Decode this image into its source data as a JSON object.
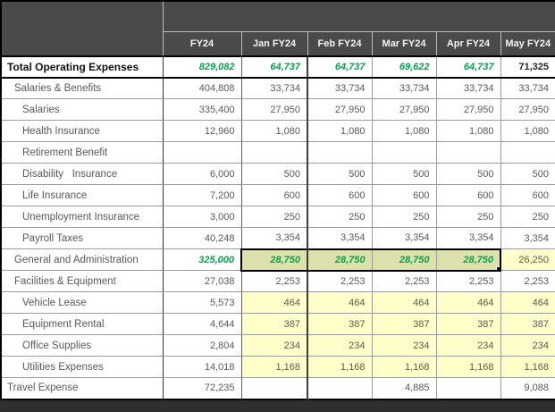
{
  "colors": {
    "header_bg": "#4a4a4a",
    "green": "#00a551",
    "yellow": "#ffffc9",
    "selected_yellow": "#dde2ac",
    "text_gray": "#595959",
    "screen_bg": "#2f2f2f"
  },
  "table": {
    "columns": [
      "FY24",
      "Jan FY24",
      "Feb FY24",
      "Mar FY24",
      "Apr FY24",
      "May FY24"
    ],
    "rows": [
      {
        "label": "Total Operating Expenses",
        "indent": 0,
        "row_class": "total",
        "cells": [
          {
            "v": "829,082",
            "c": "green"
          },
          {
            "v": "64,737",
            "c": "green"
          },
          {
            "v": "64,737",
            "c": "green"
          },
          {
            "v": "69,622",
            "c": "green"
          },
          {
            "v": "64,737",
            "c": "green"
          },
          {
            "v": "71,325",
            "c": "bold-dark"
          }
        ]
      },
      {
        "label": "Salaries & Benefits",
        "indent": 1,
        "row_class": "",
        "cells": [
          {
            "v": "404,808",
            "c": ""
          },
          {
            "v": "33,734",
            "c": ""
          },
          {
            "v": "33,734",
            "c": ""
          },
          {
            "v": "33,734",
            "c": ""
          },
          {
            "v": "33,734",
            "c": ""
          },
          {
            "v": "33,734",
            "c": ""
          }
        ]
      },
      {
        "label": "Salaries",
        "indent": 2,
        "row_class": "",
        "cells": [
          {
            "v": "335,400",
            "c": ""
          },
          {
            "v": "27,950",
            "c": ""
          },
          {
            "v": "27,950",
            "c": ""
          },
          {
            "v": "27,950",
            "c": ""
          },
          {
            "v": "27,950",
            "c": ""
          },
          {
            "v": "27,950",
            "c": ""
          }
        ]
      },
      {
        "label": "Health Insurance",
        "indent": 2,
        "row_class": "",
        "cells": [
          {
            "v": "12,960",
            "c": ""
          },
          {
            "v": "1,080",
            "c": ""
          },
          {
            "v": "1,080",
            "c": ""
          },
          {
            "v": "1,080",
            "c": ""
          },
          {
            "v": "1,080",
            "c": ""
          },
          {
            "v": "1,080",
            "c": ""
          }
        ]
      },
      {
        "label": "Retirement Benefit",
        "indent": 2,
        "row_class": "",
        "cells": [
          {
            "v": "",
            "c": ""
          },
          {
            "v": "",
            "c": ""
          },
          {
            "v": "",
            "c": ""
          },
          {
            "v": "",
            "c": ""
          },
          {
            "v": "",
            "c": ""
          },
          {
            "v": "",
            "c": ""
          }
        ]
      },
      {
        "label": "Disability   Insurance",
        "indent": 2,
        "row_class": "",
        "cells": [
          {
            "v": "6,000",
            "c": ""
          },
          {
            "v": "500",
            "c": ""
          },
          {
            "v": "500",
            "c": ""
          },
          {
            "v": "500",
            "c": ""
          },
          {
            "v": "500",
            "c": ""
          },
          {
            "v": "500",
            "c": ""
          }
        ]
      },
      {
        "label": "Life Insurance",
        "indent": 2,
        "row_class": "",
        "cells": [
          {
            "v": "7,200",
            "c": ""
          },
          {
            "v": "600",
            "c": ""
          },
          {
            "v": "600",
            "c": ""
          },
          {
            "v": "600",
            "c": ""
          },
          {
            "v": "600",
            "c": ""
          },
          {
            "v": "600",
            "c": ""
          }
        ]
      },
      {
        "label": "Unemployment Insurance",
        "indent": 2,
        "row_class": "",
        "cells": [
          {
            "v": "3,000",
            "c": ""
          },
          {
            "v": "250",
            "c": ""
          },
          {
            "v": "250",
            "c": ""
          },
          {
            "v": "250",
            "c": ""
          },
          {
            "v": "250",
            "c": ""
          },
          {
            "v": "250",
            "c": ""
          }
        ]
      },
      {
        "label": "Payroll Taxes",
        "indent": 2,
        "row_class": "",
        "cells": [
          {
            "v": "40,248",
            "c": ""
          },
          {
            "v": "3,354",
            "c": ""
          },
          {
            "v": "3,354",
            "c": ""
          },
          {
            "v": "3,354",
            "c": ""
          },
          {
            "v": "3,354",
            "c": ""
          },
          {
            "v": "3,354",
            "c": ""
          }
        ]
      },
      {
        "label": "General and Administration",
        "indent": 1,
        "row_class": "",
        "cells": [
          {
            "v": "325,000",
            "c": "green"
          },
          {
            "v": "28,750",
            "c": "green sel sel-first"
          },
          {
            "v": "28,750",
            "c": "green sel"
          },
          {
            "v": "28,750",
            "c": "green sel"
          },
          {
            "v": "28,750",
            "c": "green sel sel-last handle"
          },
          {
            "v": "26,250",
            "c": "yellow"
          }
        ]
      },
      {
        "label": "Facilities & Equipment",
        "indent": 1,
        "row_class": "",
        "cells": [
          {
            "v": "27,038",
            "c": ""
          },
          {
            "v": "2,253",
            "c": ""
          },
          {
            "v": "2,253",
            "c": ""
          },
          {
            "v": "2,253",
            "c": ""
          },
          {
            "v": "2,253",
            "c": ""
          },
          {
            "v": "2,253",
            "c": ""
          }
        ]
      },
      {
        "label": "Vehicle Lease",
        "indent": 2,
        "row_class": "",
        "cells": [
          {
            "v": "5,573",
            "c": ""
          },
          {
            "v": "464",
            "c": "yellow"
          },
          {
            "v": "464",
            "c": "yellow"
          },
          {
            "v": "464",
            "c": "yellow"
          },
          {
            "v": "464",
            "c": "yellow"
          },
          {
            "v": "464",
            "c": "yellow"
          }
        ]
      },
      {
        "label": "Equipment Rental",
        "indent": 2,
        "row_class": "",
        "cells": [
          {
            "v": "4,644",
            "c": ""
          },
          {
            "v": "387",
            "c": "yellow"
          },
          {
            "v": "387",
            "c": "yellow"
          },
          {
            "v": "387",
            "c": "yellow"
          },
          {
            "v": "387",
            "c": "yellow"
          },
          {
            "v": "387",
            "c": "yellow"
          }
        ]
      },
      {
        "label": "Office Supplies",
        "indent": 2,
        "row_class": "",
        "cells": [
          {
            "v": "2,804",
            "c": ""
          },
          {
            "v": "234",
            "c": "yellow"
          },
          {
            "v": "234",
            "c": "yellow"
          },
          {
            "v": "234",
            "c": "yellow"
          },
          {
            "v": "234",
            "c": "yellow"
          },
          {
            "v": "234",
            "c": "yellow"
          }
        ]
      },
      {
        "label": "Utilities Expenses",
        "indent": 2,
        "row_class": "",
        "cells": [
          {
            "v": "14,018",
            "c": ""
          },
          {
            "v": "1,168",
            "c": "yellow"
          },
          {
            "v": "1,168",
            "c": "yellow"
          },
          {
            "v": "1,168",
            "c": "yellow"
          },
          {
            "v": "1,168",
            "c": "yellow"
          },
          {
            "v": "1,168",
            "c": "yellow"
          }
        ]
      },
      {
        "label": "Travel Expense",
        "indent": 0,
        "row_class": "",
        "cells": [
          {
            "v": "72,235",
            "c": ""
          },
          {
            "v": "",
            "c": ""
          },
          {
            "v": "",
            "c": ""
          },
          {
            "v": "4,885",
            "c": ""
          },
          {
            "v": "",
            "c": ""
          },
          {
            "v": "9,088",
            "c": ""
          }
        ]
      }
    ]
  },
  "selection": {
    "row": "General and Administration",
    "columns": [
      "Jan FY24",
      "Feb FY24",
      "Mar FY24",
      "Apr FY24"
    ],
    "values": [
      "28,750",
      "28,750",
      "28,750",
      "28,750"
    ],
    "fill_handle": true
  }
}
